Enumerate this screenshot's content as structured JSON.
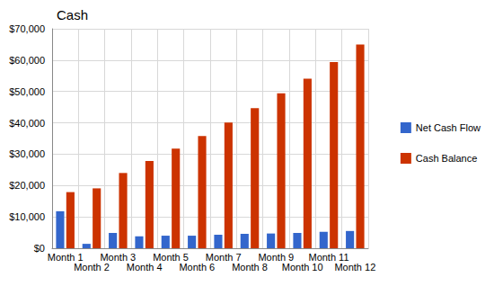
{
  "chart_data": {
    "type": "bar",
    "title": "Cash",
    "categories": [
      "Month 1",
      "Month 2",
      "Month 3",
      "Month 4",
      "Month 5",
      "Month 6",
      "Month 7",
      "Month 8",
      "Month 9",
      "Month 10",
      "Month 11",
      "Month 12"
    ],
    "series": [
      {
        "name": "Net Cash Flow",
        "color": "#3366cc",
        "values": [
          11800,
          1400,
          4900,
          3800,
          4000,
          4000,
          4300,
          4600,
          4700,
          4900,
          5200,
          5500
        ]
      },
      {
        "name": "Cash Balance",
        "color": "#cc3300",
        "values": [
          17900,
          19100,
          24000,
          27800,
          31800,
          35800,
          40100,
          44700,
          49400,
          54100,
          59400,
          65000
        ]
      }
    ],
    "ylim": [
      0,
      70000
    ],
    "yticks": [
      {
        "value": 0,
        "label": "$0"
      },
      {
        "value": 10000,
        "label": "$10,000"
      },
      {
        "value": 20000,
        "label": "$20,000"
      },
      {
        "value": 30000,
        "label": "$30,000"
      },
      {
        "value": 40000,
        "label": "$40,000"
      },
      {
        "value": 50000,
        "label": "$50,000"
      },
      {
        "value": 60000,
        "label": "$60,000"
      },
      {
        "value": 70000,
        "label": "$70,000"
      }
    ],
    "grid": true,
    "legend": "right"
  }
}
